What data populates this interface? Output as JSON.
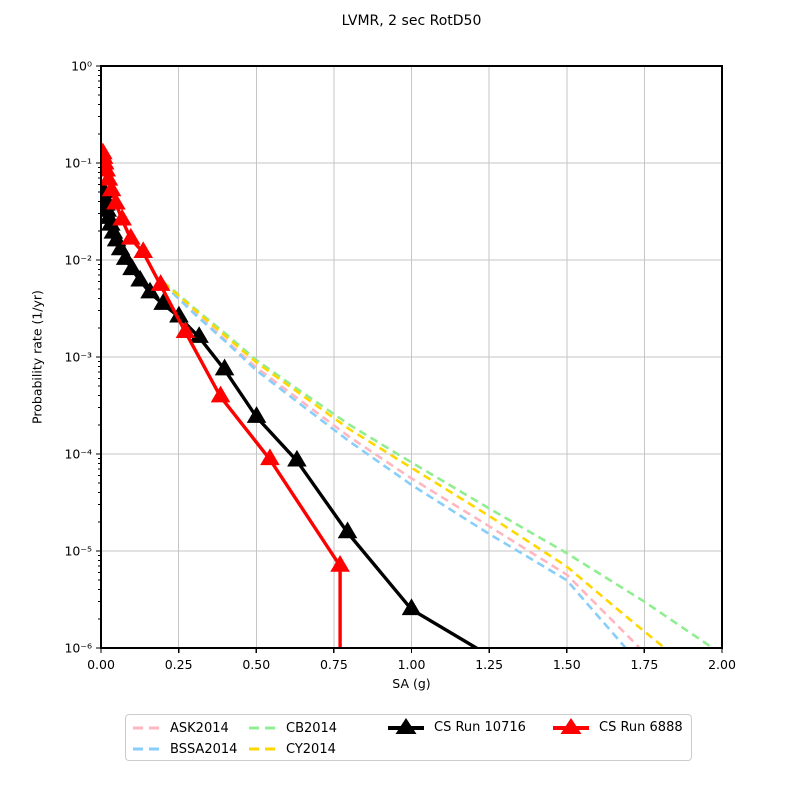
{
  "figure": {
    "title": "LVMR, 2 sec RotD50"
  },
  "chart_data": {
    "type": "line",
    "title": "LVMR, 2 sec RotD50",
    "xlabel": "SA (g)",
    "ylabel": "Probability rate (1/yr)",
    "grid": true,
    "legend_position": "bottom",
    "x_axis": {
      "min": 0,
      "max": 2,
      "ticks": [
        0,
        0.25,
        0.5,
        0.75,
        1.0,
        1.25,
        1.5,
        1.75,
        2.0
      ],
      "tick_labels": [
        "0.00",
        "0.25",
        "0.50",
        "0.75",
        "1.00",
        "1.25",
        "1.50",
        "1.75",
        "2.00"
      ]
    },
    "y_axis": {
      "scale": "log",
      "min": 1e-06,
      "max": 1,
      "tick_labels": [
        "10⁰",
        "10⁻¹",
        "10⁻²",
        "10⁻³",
        "10⁻⁴",
        "10⁻⁵",
        "10⁻⁶"
      ]
    },
    "series": [
      {
        "name": "ASK2014",
        "color": "#ffb6c1",
        "style": "dashed",
        "marker": null,
        "x": [
          0.2,
          0.25,
          0.3,
          0.4,
          0.5,
          0.64,
          0.8,
          1.0,
          1.25,
          1.5,
          1.735
        ],
        "y": [
          0.0057,
          0.0041,
          0.0029,
          0.0015,
          0.00078,
          0.00036,
          0.00015,
          5.6e-05,
          1.8e-05,
          5.7e-06,
          1e-06
        ]
      },
      {
        "name": "BSSA2014",
        "color": "#87cefa",
        "style": "dashed",
        "marker": null,
        "x": [
          0.2,
          0.25,
          0.3,
          0.4,
          0.5,
          0.64,
          0.8,
          1.0,
          1.25,
          1.5,
          1.69
        ],
        "y": [
          0.0057,
          0.004,
          0.0028,
          0.00145,
          0.00073,
          0.00033,
          0.000135,
          4.8e-05,
          1.5e-05,
          5e-06,
          1e-06
        ]
      },
      {
        "name": "CB2014",
        "color": "#90ee90",
        "style": "dashed",
        "marker": null,
        "x": [
          0.2,
          0.25,
          0.3,
          0.4,
          0.5,
          0.64,
          0.8,
          1.0,
          1.25,
          1.5,
          1.75,
          1.97
        ],
        "y": [
          0.006,
          0.0044,
          0.0032,
          0.00175,
          0.00093,
          0.00045,
          0.0002,
          8.2e-05,
          2.75e-05,
          9.5e-06,
          3e-06,
          1e-06
        ]
      },
      {
        "name": "CY2014",
        "color": "#ffd700",
        "style": "dashed",
        "marker": null,
        "x": [
          0.2,
          0.25,
          0.3,
          0.4,
          0.5,
          0.64,
          0.8,
          1.0,
          1.25,
          1.5,
          1.7,
          1.815
        ],
        "y": [
          0.0059,
          0.0043,
          0.0031,
          0.00165,
          0.00088,
          0.00042,
          0.00018,
          7.2e-05,
          2.3e-05,
          6.9e-06,
          2e-06,
          1e-06
        ]
      },
      {
        "name": "CS Run 10716",
        "color": "#000000",
        "style": "solid",
        "marker": "triangle",
        "x": [
          0.01,
          0.0126,
          0.0158,
          0.02,
          0.0251,
          0.0316,
          0.0398,
          0.0501,
          0.0631,
          0.0794,
          0.1,
          0.126,
          0.158,
          0.2,
          0.251,
          0.316,
          0.398,
          0.501,
          0.631,
          0.794,
          1.0,
          1.26
        ],
        "y": [
          0.05,
          0.043,
          0.037,
          0.032,
          0.027,
          0.023,
          0.019,
          0.0158,
          0.0128,
          0.0102,
          0.008,
          0.0061,
          0.0046,
          0.0035,
          0.0026,
          0.0016,
          0.00074,
          0.00024,
          8.5e-05,
          1.55e-05,
          2.5e-06,
          8e-07
        ]
      },
      {
        "name": "CS Run 6888",
        "color": "#ff0000",
        "style": "solid",
        "marker": "triangle",
        "x": [
          0.006,
          0.0085,
          0.012,
          0.017,
          0.024,
          0.034,
          0.048,
          0.068,
          0.096,
          0.136,
          0.192,
          0.272,
          0.385,
          0.544,
          0.77,
          0.77
        ],
        "y": [
          0.125,
          0.112,
          0.098,
          0.083,
          0.067,
          0.052,
          0.038,
          0.026,
          0.0165,
          0.012,
          0.0055,
          0.0018,
          0.00039,
          8.8e-05,
          7e-06,
          1e-07
        ]
      }
    ]
  }
}
